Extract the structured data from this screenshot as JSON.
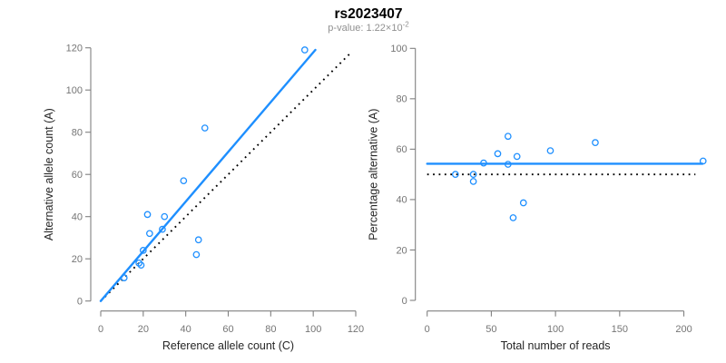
{
  "header": {
    "title": "rs2023407",
    "p_value_label": "p-value: 1.22×10",
    "p_value_exponent": "-2"
  },
  "colors": {
    "accent_blue": "#1E8FFF",
    "dotted_line_black": "#000000",
    "axis_gray": "#808080",
    "tick_label_gray": "#757575",
    "axis_title_dark": "#262626",
    "subtitle_gray": "#909090",
    "title_black": "#000000",
    "background": "#FFFFFF"
  },
  "chart_data": [
    {
      "type": "scatter",
      "panel": "allele-counts",
      "xlabel": "Reference allele count (C)",
      "ylabel": "Alternative allele count (A)",
      "xlim": [
        0,
        120
      ],
      "ylim": [
        0,
        120
      ],
      "grid": false,
      "xticks": [
        0,
        20,
        40,
        60,
        80,
        100,
        120
      ],
      "yticks": [
        0,
        20,
        40,
        60,
        80,
        100,
        120
      ],
      "points": [
        [
          11,
          11
        ],
        [
          18,
          18
        ],
        [
          19,
          17
        ],
        [
          20,
          24
        ],
        [
          22,
          41
        ],
        [
          23,
          32
        ],
        [
          29,
          34
        ],
        [
          30,
          40
        ],
        [
          39,
          57
        ],
        [
          45,
          22
        ],
        [
          46,
          29
        ],
        [
          49,
          82
        ],
        [
          96,
          119
        ]
      ],
      "lines": [
        {
          "name": "identity-line",
          "style": "dotted",
          "color_key": "dotted_line_black",
          "x1": 0,
          "y1": 0,
          "x2": 118,
          "y2": 118
        },
        {
          "name": "fit-line",
          "style": "solid",
          "color_key": "accent_blue",
          "x1": 0,
          "y1": 0,
          "x2": 101,
          "y2": 119
        }
      ]
    },
    {
      "type": "scatter",
      "panel": "percentage-vs-reads",
      "xlabel": "Total number of reads",
      "ylabel": "Percentage alternative (A)",
      "xlim": [
        0,
        215
      ],
      "ylim": [
        0,
        100
      ],
      "grid": false,
      "xticks": [
        0,
        50,
        100,
        150,
        200
      ],
      "yticks": [
        0,
        20,
        40,
        60,
        80,
        100
      ],
      "points": [
        [
          22,
          50.0
        ],
        [
          36,
          50.0
        ],
        [
          36,
          47.2
        ],
        [
          44,
          54.5
        ],
        [
          63,
          65.1
        ],
        [
          55,
          58.2
        ],
        [
          63,
          54.0
        ],
        [
          70,
          57.1
        ],
        [
          96,
          59.4
        ],
        [
          67,
          32.8
        ],
        [
          75,
          38.7
        ],
        [
          131,
          62.6
        ],
        [
          215,
          55.3
        ]
      ],
      "lines": [
        {
          "name": "reference-line-50pct",
          "style": "dotted",
          "color_key": "dotted_line_black",
          "x1": 0,
          "y1": 50,
          "x2": 209,
          "y2": 50
        },
        {
          "name": "fit-line",
          "style": "solid",
          "color_key": "accent_blue",
          "x1": 0,
          "y1": 54.2,
          "x2": 214.5,
          "y2": 54.2
        }
      ]
    }
  ]
}
